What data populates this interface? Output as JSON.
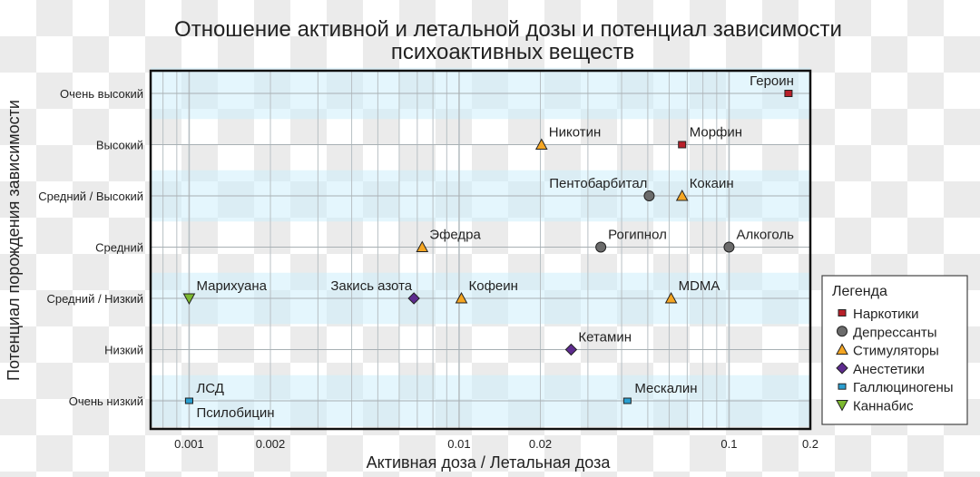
{
  "chart_data": {
    "type": "scatter",
    "title_lines": [
      "Отношение активной и летальной дозы и потенциал зависимости",
      "психоактивных веществ"
    ],
    "xlabel": "Активная доза / Летальная доза",
    "ylabel": "Потенциал порождения зависимости",
    "xscale": "log",
    "xlim": [
      0.00072,
      0.2
    ],
    "xticks": [
      {
        "value": 0.001,
        "label": "0.001"
      },
      {
        "value": 0.002,
        "label": "0.002"
      },
      {
        "value": 0.01,
        "label": "0.01"
      },
      {
        "value": 0.02,
        "label": "0.02"
      },
      {
        "value": 0.1,
        "label": "0.1"
      },
      {
        "value": 0.2,
        "label": "0.2"
      }
    ],
    "ycategories": [
      "Очень низкий",
      "Низкий",
      "Средний / Низкий",
      "Средний",
      "Средний / Высокий",
      "Высокий",
      "Очень высокий"
    ],
    "grid": true,
    "legend": {
      "title": "Легенда",
      "placement": "right",
      "entries": [
        {
          "key": "narc",
          "label": "Наркотики",
          "color": "#b8202a",
          "marker": "square"
        },
        {
          "key": "dep",
          "label": "Депрессанты",
          "color": "#6b6b6b",
          "marker": "circle"
        },
        {
          "key": "stim",
          "label": "Стимуляторы",
          "color": "#f5a623",
          "marker": "triangle-up"
        },
        {
          "key": "anes",
          "label": "Анестетики",
          "color": "#5e2b8f",
          "marker": "diamond"
        },
        {
          "key": "hall",
          "label": "Галлюциногены",
          "color": "#2a9fd0",
          "marker": "square-small"
        },
        {
          "key": "cann",
          "label": "Каннабис",
          "color": "#7cb82f",
          "marker": "triangle-down"
        }
      ]
    },
    "points": [
      {
        "label": "Героин",
        "x": 0.166,
        "y": 6,
        "group": "narc",
        "anchor": "end"
      },
      {
        "label": "Никотин",
        "x": 0.0202,
        "y": 5,
        "group": "stim",
        "anchor": "start"
      },
      {
        "label": "Морфин",
        "x": 0.067,
        "y": 5,
        "group": "narc",
        "anchor": "start"
      },
      {
        "label": "Пентобарбитал",
        "x": 0.0506,
        "y": 4,
        "group": "dep",
        "anchor": "end"
      },
      {
        "label": "Кокаин",
        "x": 0.067,
        "y": 4,
        "group": "stim",
        "anchor": "start"
      },
      {
        "label": "Эфедра",
        "x": 0.0073,
        "y": 3,
        "group": "stim",
        "anchor": "start"
      },
      {
        "label": "Рогипнол",
        "x": 0.0335,
        "y": 3,
        "group": "dep",
        "anchor": "start"
      },
      {
        "label": "Алкоголь",
        "x": 0.1,
        "y": 3,
        "group": "dep",
        "anchor": "start"
      },
      {
        "label": "Марихуана",
        "x": 0.001,
        "y": 2,
        "group": "cann",
        "anchor": "start"
      },
      {
        "label": "Закись азота",
        "x": 0.0068,
        "y": 2,
        "group": "anes",
        "anchor": "end"
      },
      {
        "label": "Кофеин",
        "x": 0.0102,
        "y": 2,
        "group": "stim",
        "anchor": "start"
      },
      {
        "label": "MDMA",
        "x": 0.061,
        "y": 2,
        "group": "stim",
        "anchor": "start"
      },
      {
        "label": "Кетамин",
        "x": 0.026,
        "y": 1,
        "group": "anes",
        "anchor": "start"
      },
      {
        "label": "ЛСД",
        "x": 0.001,
        "y": 0,
        "group": "hall",
        "anchor": "start"
      },
      {
        "label": "Псилобицин",
        "x": 0.001,
        "y": 0,
        "group": "hall",
        "anchor": "below"
      },
      {
        "label": "Мескалин",
        "x": 0.042,
        "y": 0,
        "group": "hall",
        "anchor": "start"
      }
    ]
  }
}
